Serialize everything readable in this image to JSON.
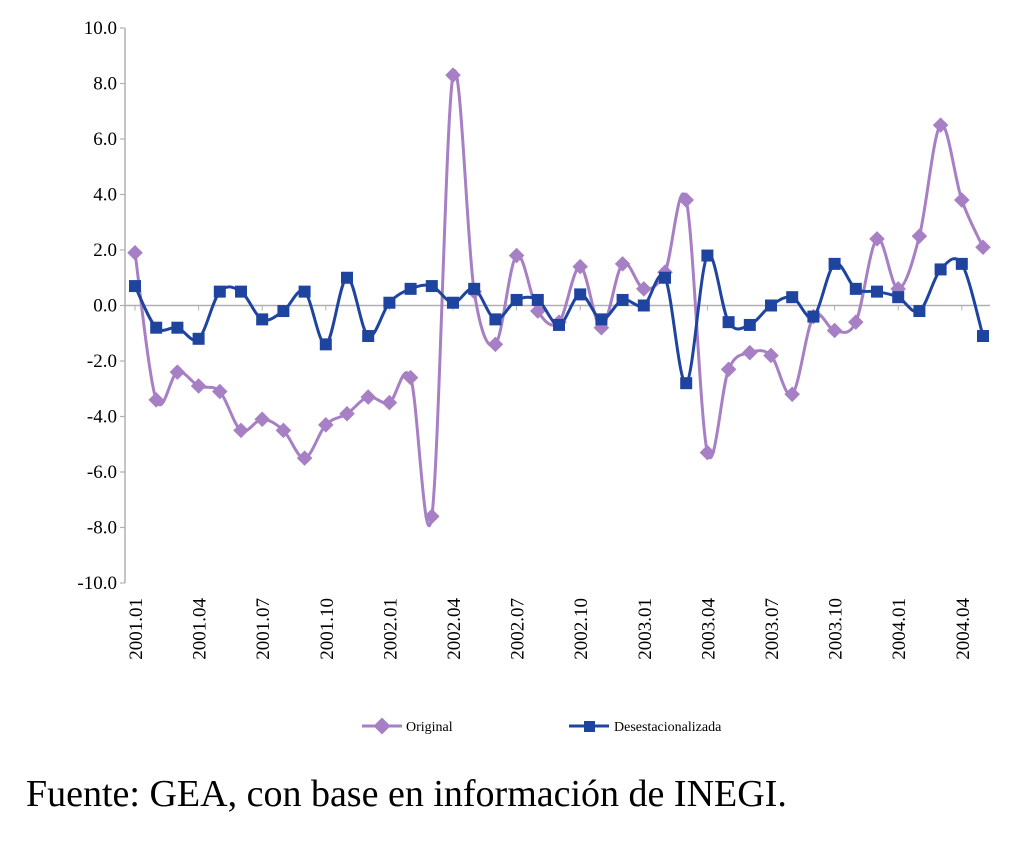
{
  "chart_data": {
    "type": "line",
    "title": "",
    "xlabel": "",
    "ylabel": "",
    "ylim": [
      -10,
      10
    ],
    "y_ticks": [
      "10.0",
      "8.0",
      "6.0",
      "4.0",
      "2.0",
      "0.0",
      "-2.0",
      "-4.0",
      "-6.0",
      "-8.0",
      "-10.0"
    ],
    "x_tick_labels": [
      "2001.01",
      "2001.04",
      "2001.07",
      "2001.10",
      "2002.01",
      "2002.04",
      "2002.07",
      "2002.10",
      "2003.01",
      "2003.04",
      "2003.07",
      "2003.10",
      "2004.01",
      "2004.04"
    ],
    "x": [
      "2001.01",
      "2001.02",
      "2001.03",
      "2001.04",
      "2001.05",
      "2001.06",
      "2001.07",
      "2001.08",
      "2001.09",
      "2001.10",
      "2001.11",
      "2001.12",
      "2002.01",
      "2002.02",
      "2002.03",
      "2002.04",
      "2002.05",
      "2002.06",
      "2002.07",
      "2002.08",
      "2002.09",
      "2002.10",
      "2002.11",
      "2002.12",
      "2003.01",
      "2003.02",
      "2003.03",
      "2003.04",
      "2003.05",
      "2003.06",
      "2003.07",
      "2003.08",
      "2003.09",
      "2003.10",
      "2003.11",
      "2003.12",
      "2004.01",
      "2004.02",
      "2004.03",
      "2004.04",
      "2004.05"
    ],
    "grid": false,
    "legend_position": "bottom",
    "series": [
      {
        "name": "Original",
        "color": "#a77fc4",
        "marker": "diamond",
        "values": [
          1.9,
          -3.4,
          -2.4,
          -2.9,
          -3.1,
          -4.5,
          -4.1,
          -4.5,
          -5.5,
          -4.3,
          -3.9,
          -3.3,
          -3.5,
          -2.6,
          -7.6,
          8.3,
          0.5,
          -1.4,
          1.8,
          -0.2,
          -0.6,
          1.4,
          -0.8,
          1.5,
          0.6,
          1.2,
          3.8,
          -5.3,
          -2.3,
          -1.7,
          -1.8,
          -3.2,
          -0.4,
          -0.9,
          -0.6,
          2.4,
          0.6,
          2.5,
          6.5,
          3.8,
          2.1
        ]
      },
      {
        "name": "Desestacionalizada",
        "color": "#1f44a0",
        "marker": "square",
        "values": [
          0.7,
          -0.8,
          -0.8,
          -1.2,
          0.5,
          0.5,
          -0.5,
          -0.2,
          0.5,
          -1.4,
          1.0,
          -1.1,
          0.1,
          0.6,
          0.7,
          0.1,
          0.6,
          -0.5,
          0.2,
          0.2,
          -0.7,
          0.4,
          -0.5,
          0.2,
          0.0,
          1.0,
          -2.8,
          1.8,
          -0.6,
          -0.7,
          0.0,
          0.3,
          -0.4,
          1.5,
          0.6,
          0.5,
          0.3,
          -0.2,
          1.3,
          1.5,
          -1.1
        ]
      }
    ]
  },
  "source_text": "Fuente: GEA, con base en información de INEGI."
}
